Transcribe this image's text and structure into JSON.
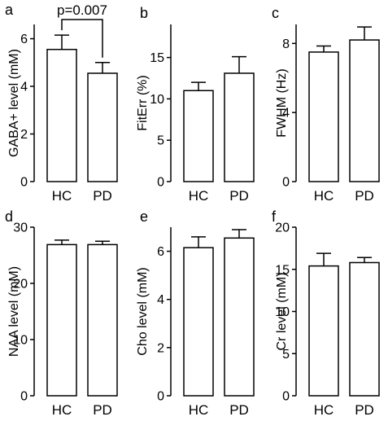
{
  "chart_data": [
    {
      "panel_letter": "a",
      "type": "bar",
      "categories": [
        "HC",
        "PD"
      ],
      "values": [
        5.55,
        4.55
      ],
      "errors": [
        0.6,
        0.45
      ],
      "ylabel": "GABA+ level (mM)",
      "ylim": [
        0,
        6.6
      ],
      "yticks": [
        0,
        2,
        4,
        6
      ],
      "annotation": "p=0.007"
    },
    {
      "panel_letter": "b",
      "type": "bar",
      "categories": [
        "HC",
        "PD"
      ],
      "values": [
        11.0,
        13.1
      ],
      "errors": [
        1.0,
        2.0
      ],
      "ylabel": "FitErr (%)",
      "ylim": [
        0,
        19
      ],
      "yticks": [
        0,
        5,
        10,
        15
      ]
    },
    {
      "panel_letter": "c",
      "type": "bar",
      "categories": [
        "HC",
        "PD"
      ],
      "values": [
        7.5,
        8.2
      ],
      "errors": [
        0.35,
        0.75
      ],
      "ylabel": "FWHM (Hz)",
      "ylim": [
        0,
        9.1
      ],
      "yticks": [
        0,
        4,
        8
      ]
    },
    {
      "panel_letter": "d",
      "type": "bar",
      "categories": [
        "HC",
        "PD"
      ],
      "values": [
        26.9,
        26.9
      ],
      "errors": [
        0.8,
        0.6
      ],
      "ylabel": "NAA level (mM)",
      "ylim": [
        0,
        30
      ],
      "yticks": [
        0,
        10,
        20,
        30
      ]
    },
    {
      "panel_letter": "e",
      "type": "bar",
      "categories": [
        "HC",
        "PD"
      ],
      "values": [
        6.15,
        6.55
      ],
      "errors": [
        0.45,
        0.35
      ],
      "ylabel": "Cho level (mM)",
      "ylim": [
        0,
        7
      ],
      "yticks": [
        0,
        2,
        4,
        6
      ]
    },
    {
      "panel_letter": "f",
      "type": "bar",
      "categories": [
        "HC",
        "PD"
      ],
      "values": [
        15.4,
        15.8
      ],
      "errors": [
        1.5,
        0.6
      ],
      "ylabel": "Cr level (mM)",
      "ylim": [
        0,
        20
      ],
      "yticks": [
        0,
        5,
        10,
        15,
        20
      ]
    }
  ]
}
